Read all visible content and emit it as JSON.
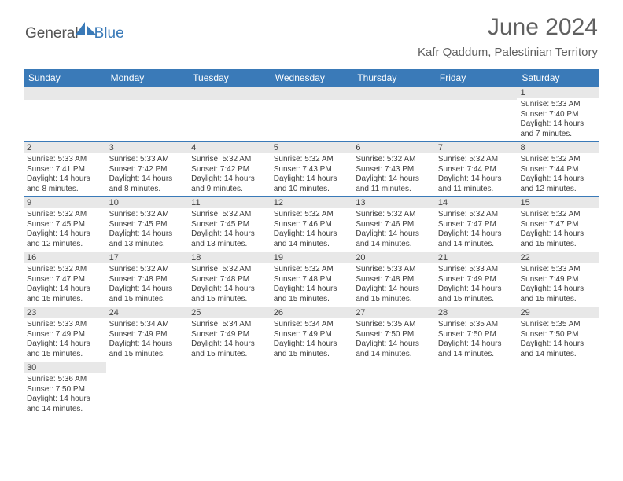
{
  "logo": {
    "part1": "General",
    "part2": "Blue"
  },
  "title": "June 2024",
  "location": "Kafr Qaddum, Palestinian Territory",
  "colors": {
    "header_bg": "#3a7ab8",
    "header_text": "#ffffff",
    "daynum_bg": "#e8e8e8",
    "border": "#3a7ab8",
    "text": "#404040",
    "page_bg": "#ffffff",
    "title_color": "#606060"
  },
  "typography": {
    "title_fontsize": 30,
    "location_fontsize": 15,
    "dayheader_fontsize": 12,
    "daynum_fontsize": 11,
    "info_fontsize": 10
  },
  "dayHeaders": [
    "Sunday",
    "Monday",
    "Tuesday",
    "Wednesday",
    "Thursday",
    "Friday",
    "Saturday"
  ],
  "weeks": [
    [
      {
        "num": "",
        "sunrise": "",
        "sunset": "",
        "daylight": ""
      },
      {
        "num": "",
        "sunrise": "",
        "sunset": "",
        "daylight": ""
      },
      {
        "num": "",
        "sunrise": "",
        "sunset": "",
        "daylight": ""
      },
      {
        "num": "",
        "sunrise": "",
        "sunset": "",
        "daylight": ""
      },
      {
        "num": "",
        "sunrise": "",
        "sunset": "",
        "daylight": ""
      },
      {
        "num": "",
        "sunrise": "",
        "sunset": "",
        "daylight": ""
      },
      {
        "num": "1",
        "sunrise": "Sunrise: 5:33 AM",
        "sunset": "Sunset: 7:40 PM",
        "daylight": "Daylight: 14 hours and 7 minutes."
      }
    ],
    [
      {
        "num": "2",
        "sunrise": "Sunrise: 5:33 AM",
        "sunset": "Sunset: 7:41 PM",
        "daylight": "Daylight: 14 hours and 8 minutes."
      },
      {
        "num": "3",
        "sunrise": "Sunrise: 5:33 AM",
        "sunset": "Sunset: 7:42 PM",
        "daylight": "Daylight: 14 hours and 8 minutes."
      },
      {
        "num": "4",
        "sunrise": "Sunrise: 5:32 AM",
        "sunset": "Sunset: 7:42 PM",
        "daylight": "Daylight: 14 hours and 9 minutes."
      },
      {
        "num": "5",
        "sunrise": "Sunrise: 5:32 AM",
        "sunset": "Sunset: 7:43 PM",
        "daylight": "Daylight: 14 hours and 10 minutes."
      },
      {
        "num": "6",
        "sunrise": "Sunrise: 5:32 AM",
        "sunset": "Sunset: 7:43 PM",
        "daylight": "Daylight: 14 hours and 11 minutes."
      },
      {
        "num": "7",
        "sunrise": "Sunrise: 5:32 AM",
        "sunset": "Sunset: 7:44 PM",
        "daylight": "Daylight: 14 hours and 11 minutes."
      },
      {
        "num": "8",
        "sunrise": "Sunrise: 5:32 AM",
        "sunset": "Sunset: 7:44 PM",
        "daylight": "Daylight: 14 hours and 12 minutes."
      }
    ],
    [
      {
        "num": "9",
        "sunrise": "Sunrise: 5:32 AM",
        "sunset": "Sunset: 7:45 PM",
        "daylight": "Daylight: 14 hours and 12 minutes."
      },
      {
        "num": "10",
        "sunrise": "Sunrise: 5:32 AM",
        "sunset": "Sunset: 7:45 PM",
        "daylight": "Daylight: 14 hours and 13 minutes."
      },
      {
        "num": "11",
        "sunrise": "Sunrise: 5:32 AM",
        "sunset": "Sunset: 7:45 PM",
        "daylight": "Daylight: 14 hours and 13 minutes."
      },
      {
        "num": "12",
        "sunrise": "Sunrise: 5:32 AM",
        "sunset": "Sunset: 7:46 PM",
        "daylight": "Daylight: 14 hours and 14 minutes."
      },
      {
        "num": "13",
        "sunrise": "Sunrise: 5:32 AM",
        "sunset": "Sunset: 7:46 PM",
        "daylight": "Daylight: 14 hours and 14 minutes."
      },
      {
        "num": "14",
        "sunrise": "Sunrise: 5:32 AM",
        "sunset": "Sunset: 7:47 PM",
        "daylight": "Daylight: 14 hours and 14 minutes."
      },
      {
        "num": "15",
        "sunrise": "Sunrise: 5:32 AM",
        "sunset": "Sunset: 7:47 PM",
        "daylight": "Daylight: 14 hours and 15 minutes."
      }
    ],
    [
      {
        "num": "16",
        "sunrise": "Sunrise: 5:32 AM",
        "sunset": "Sunset: 7:47 PM",
        "daylight": "Daylight: 14 hours and 15 minutes."
      },
      {
        "num": "17",
        "sunrise": "Sunrise: 5:32 AM",
        "sunset": "Sunset: 7:48 PM",
        "daylight": "Daylight: 14 hours and 15 minutes."
      },
      {
        "num": "18",
        "sunrise": "Sunrise: 5:32 AM",
        "sunset": "Sunset: 7:48 PM",
        "daylight": "Daylight: 14 hours and 15 minutes."
      },
      {
        "num": "19",
        "sunrise": "Sunrise: 5:32 AM",
        "sunset": "Sunset: 7:48 PM",
        "daylight": "Daylight: 14 hours and 15 minutes."
      },
      {
        "num": "20",
        "sunrise": "Sunrise: 5:33 AM",
        "sunset": "Sunset: 7:48 PM",
        "daylight": "Daylight: 14 hours and 15 minutes."
      },
      {
        "num": "21",
        "sunrise": "Sunrise: 5:33 AM",
        "sunset": "Sunset: 7:49 PM",
        "daylight": "Daylight: 14 hours and 15 minutes."
      },
      {
        "num": "22",
        "sunrise": "Sunrise: 5:33 AM",
        "sunset": "Sunset: 7:49 PM",
        "daylight": "Daylight: 14 hours and 15 minutes."
      }
    ],
    [
      {
        "num": "23",
        "sunrise": "Sunrise: 5:33 AM",
        "sunset": "Sunset: 7:49 PM",
        "daylight": "Daylight: 14 hours and 15 minutes."
      },
      {
        "num": "24",
        "sunrise": "Sunrise: 5:34 AM",
        "sunset": "Sunset: 7:49 PM",
        "daylight": "Daylight: 14 hours and 15 minutes."
      },
      {
        "num": "25",
        "sunrise": "Sunrise: 5:34 AM",
        "sunset": "Sunset: 7:49 PM",
        "daylight": "Daylight: 14 hours and 15 minutes."
      },
      {
        "num": "26",
        "sunrise": "Sunrise: 5:34 AM",
        "sunset": "Sunset: 7:49 PM",
        "daylight": "Daylight: 14 hours and 15 minutes."
      },
      {
        "num": "27",
        "sunrise": "Sunrise: 5:35 AM",
        "sunset": "Sunset: 7:50 PM",
        "daylight": "Daylight: 14 hours and 14 minutes."
      },
      {
        "num": "28",
        "sunrise": "Sunrise: 5:35 AM",
        "sunset": "Sunset: 7:50 PM",
        "daylight": "Daylight: 14 hours and 14 minutes."
      },
      {
        "num": "29",
        "sunrise": "Sunrise: 5:35 AM",
        "sunset": "Sunset: 7:50 PM",
        "daylight": "Daylight: 14 hours and 14 minutes."
      }
    ],
    [
      {
        "num": "30",
        "sunrise": "Sunrise: 5:36 AM",
        "sunset": "Sunset: 7:50 PM",
        "daylight": "Daylight: 14 hours and 14 minutes."
      },
      {
        "num": "",
        "sunrise": "",
        "sunset": "",
        "daylight": ""
      },
      {
        "num": "",
        "sunrise": "",
        "sunset": "",
        "daylight": ""
      },
      {
        "num": "",
        "sunrise": "",
        "sunset": "",
        "daylight": ""
      },
      {
        "num": "",
        "sunrise": "",
        "sunset": "",
        "daylight": ""
      },
      {
        "num": "",
        "sunrise": "",
        "sunset": "",
        "daylight": ""
      },
      {
        "num": "",
        "sunrise": "",
        "sunset": "",
        "daylight": ""
      }
    ]
  ]
}
